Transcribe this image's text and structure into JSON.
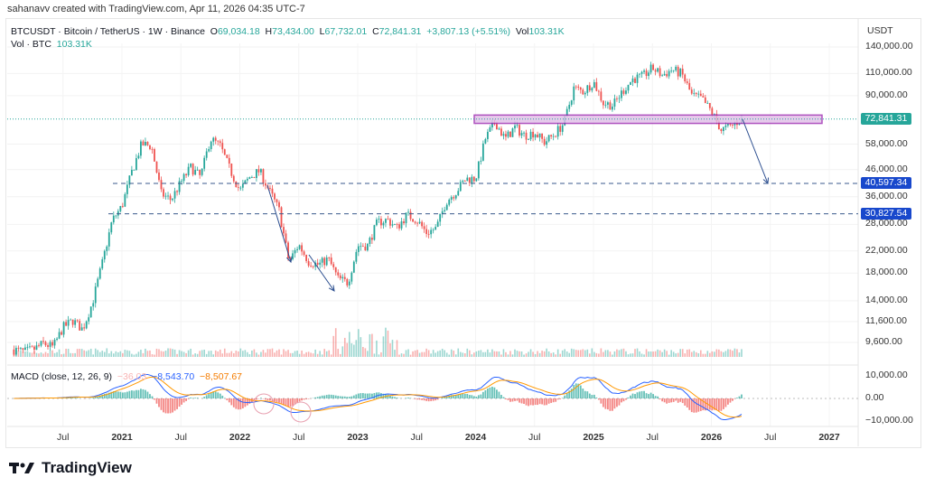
{
  "credit": "sahanavv created with TradingView.com, Apr 11, 2026 04:35 UTC-7",
  "legend": {
    "symbol": "BTCUSDT · Bitcoin / TetherUS · 1W · Binance",
    "o_label": "O",
    "o": "69,034.18",
    "h_label": "H",
    "h": "73,434.00",
    "l_label": "L",
    "l": "67,732.01",
    "c_label": "C",
    "c": "72,841.31",
    "change": "+3,807.13 (+5.51%)",
    "vol_label": "Vol",
    "vol": "103.31K",
    "vol_line_label": "Vol · BTC",
    "vol_line_value": "103.31K"
  },
  "macd": {
    "label": "MACD (close, 12, 26, 9)",
    "hist": "−36.03",
    "macd": "−8,543.70",
    "signal": "−8,507.67"
  },
  "colors": {
    "up": "#26a69a",
    "down": "#ef5350",
    "macd": "#2962ff",
    "signal": "#ff9800",
    "annotation": "#9c27b0",
    "level": "#1848cc"
  },
  "brand": "TradingView",
  "chart_data": {
    "type": "candlestick",
    "symbol": "BTCUSDT",
    "interval": "1W",
    "yscale": "log",
    "currency": "USDT",
    "y_ticks": [
      "140,000.00",
      "110,000.00",
      "90,000.00",
      "58,000.00",
      "46,000.00",
      "36,000.00",
      "28,000.00",
      "22,000.00",
      "18,000.00",
      "14,000.00",
      "11,600.00",
      "9,600.00"
    ],
    "y_tick_values": [
      140000,
      110000,
      90000,
      58000,
      46000,
      36000,
      28000,
      22000,
      18000,
      14000,
      11600,
      9600
    ],
    "price_badges": [
      {
        "label": "72,841.31",
        "value": 72841.31,
        "color": "#26a69a"
      },
      {
        "label": "40,597.34",
        "value": 40597.34,
        "color": "#1848cc"
      },
      {
        "label": "30,827.54",
        "value": 30827.54,
        "color": "#1848cc"
      }
    ],
    "macd_ticks": [
      "10,000.00",
      "0.00",
      "−10,000.00"
    ],
    "macd_tick_values": [
      10000,
      0,
      -10000
    ],
    "x_ticks": [
      {
        "label": "Jul",
        "t": 2020.5
      },
      {
        "label": "2021",
        "t": 2021,
        "bold": true
      },
      {
        "label": "Jul",
        "t": 2021.5
      },
      {
        "label": "2022",
        "t": 2022,
        "bold": true
      },
      {
        "label": "Jul",
        "t": 2022.5
      },
      {
        "label": "2023",
        "t": 2023,
        "bold": true
      },
      {
        "label": "Jul",
        "t": 2023.5
      },
      {
        "label": "2024",
        "t": 2024,
        "bold": true
      },
      {
        "label": "Jul",
        "t": 2024.5
      },
      {
        "label": "2025",
        "t": 2025,
        "bold": true
      },
      {
        "label": "Jul",
        "t": 2025.5
      },
      {
        "label": "2026",
        "t": 2026,
        "bold": true
      },
      {
        "label": "Jul",
        "t": 2026.5
      },
      {
        "label": "2027",
        "t": 2027,
        "bold": true
      }
    ],
    "start": "2020-02",
    "monthly_closes": [
      9000,
      8800,
      9000,
      9500,
      9200,
      11000,
      11700,
      10800,
      13800,
      19700,
      29000,
      33000,
      45000,
      58000,
      57000,
      37000,
      35000,
      41000,
      47000,
      43000,
      61000,
      57000,
      46000,
      38000,
      43000,
      45500,
      38000,
      31800,
      19900,
      23300,
      20000,
      19400,
      20500,
      17100,
      16500,
      23100,
      23100,
      28500,
      29200,
      27200,
      30500,
      29200,
      26000,
      27000,
      34500,
      37700,
      42300,
      42500,
      61000,
      71000,
      60600,
      67500,
      62700,
      64600,
      59000,
      63300,
      70200,
      96400,
      93400,
      102400,
      84300,
      82500,
      94200,
      104600,
      107100,
      115700,
      108200,
      114000,
      109500,
      90400,
      87500,
      78000,
      66000,
      68000,
      72841
    ],
    "annotations": {
      "zone": [
        70000,
        75500
      ],
      "levels": [
        40597.34,
        30827.54
      ]
    }
  }
}
